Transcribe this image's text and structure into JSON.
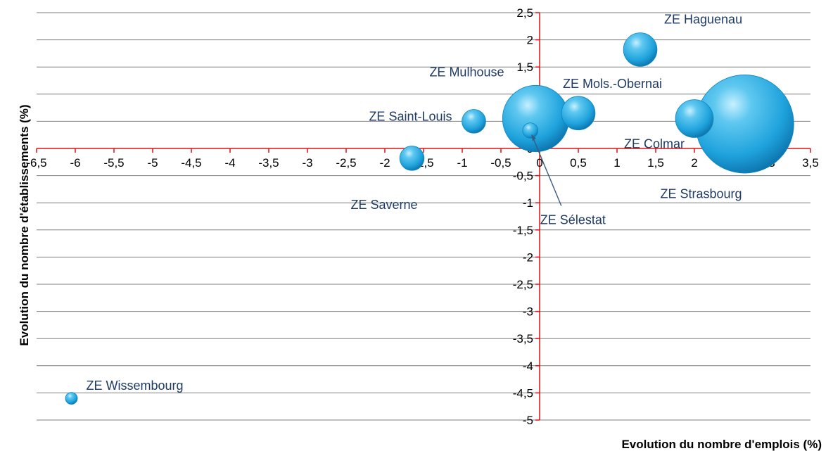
{
  "chart_data": {
    "type": "bubble",
    "xlabel": "Evolution du nombre d'emplois (%)",
    "ylabel": "Evolution du nombre d'établissements (%)",
    "xlim": [
      -6.5,
      3.5
    ],
    "ylim": [
      -5,
      2.5
    ],
    "x_ticks": [
      "-6,5",
      "-6",
      "-5,5",
      "-5",
      "-4,5",
      "-4",
      "-3,5",
      "-3",
      "-2,5",
      "-2",
      "-1,5",
      "-1",
      "-0,5",
      "0",
      "0,5",
      "1",
      "1,5",
      "2",
      "2,5",
      "3",
      "3,5"
    ],
    "y_ticks": [
      "2,5",
      "2",
      "1,5",
      "1",
      "0,5",
      "0",
      "-0,5",
      "-1",
      "-1,5",
      "-2",
      "-2,5",
      "-3",
      "-3,5",
      "-4",
      "-4,5",
      "-5"
    ],
    "grid": "horizontal",
    "axis_color": "#e01010",
    "grid_color": "#7f7f7f",
    "bubble_color": "#1ea2dc",
    "label_color": "#1f3b64",
    "points": [
      {
        "name": "ZE Haguenau",
        "x": 1.3,
        "y": 1.82,
        "size": 1100
      },
      {
        "name": "ZE Mols.-Obernai",
        "x": 0.5,
        "y": 0.65,
        "size": 1100
      },
      {
        "name": "ZE Mulhouse",
        "x": -0.05,
        "y": 0.55,
        "size": 4300
      },
      {
        "name": "ZE Saint-Louis",
        "x": -0.85,
        "y": 0.5,
        "size": 550
      },
      {
        "name": "ZE Sélestat",
        "x": -0.12,
        "y": 0.33,
        "size": 230
      },
      {
        "name": "ZE Colmar",
        "x": 2.0,
        "y": 0.55,
        "size": 1400
      },
      {
        "name": "ZE Strasbourg",
        "x": 2.65,
        "y": 0.45,
        "size": 9400
      },
      {
        "name": "ZE Saverne",
        "x": -1.65,
        "y": -0.18,
        "size": 580
      },
      {
        "name": "ZE Wissembourg",
        "x": -6.05,
        "y": -4.6,
        "size": 140
      }
    ]
  }
}
